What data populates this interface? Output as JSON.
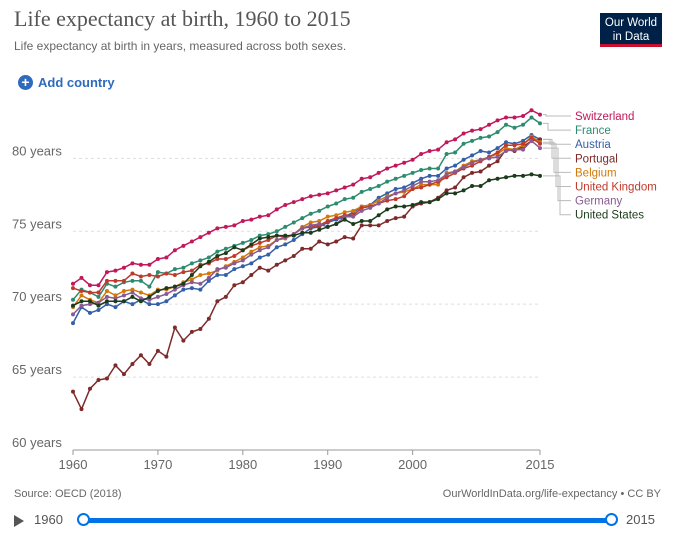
{
  "header": {
    "title": "Life expectancy at birth, 1960 to 2015",
    "subtitle": "Life expectancy at birth in years, measured across both sexes.",
    "logo_line1": "Our World",
    "logo_line2": "in Data"
  },
  "controls": {
    "add_country": "Add country",
    "timeline_start": "1960",
    "timeline_end": "2015",
    "range_start_fraction": 0,
    "range_end_fraction": 1
  },
  "footer": {
    "source": "Source: OECD (2018)",
    "credit": "OurWorldInData.org/life-expectancy • CC BY"
  },
  "chart_data": {
    "type": "line",
    "title": "Life expectancy at birth, 1960 to 2015",
    "xlabel": "",
    "ylabel": "",
    "xlim": [
      1960,
      2015
    ],
    "ylim": [
      60,
      84
    ],
    "x_ticks": [
      "1960",
      "1970",
      "1980",
      "1990",
      "2000",
      "2015"
    ],
    "y_ticks": [
      "60 years",
      "65 years",
      "70 years",
      "75 years",
      "80 years"
    ],
    "grid": "horizontal dashed",
    "legend": "right, line-end labels",
    "x": [
      1960,
      1961,
      1962,
      1963,
      1964,
      1965,
      1966,
      1967,
      1968,
      1969,
      1970,
      1971,
      1972,
      1973,
      1974,
      1975,
      1976,
      1977,
      1978,
      1979,
      1980,
      1981,
      1982,
      1983,
      1984,
      1985,
      1986,
      1987,
      1988,
      1989,
      1990,
      1991,
      1992,
      1993,
      1994,
      1995,
      1996,
      1997,
      1998,
      1999,
      2000,
      2001,
      2002,
      2003,
      2004,
      2005,
      2006,
      2007,
      2008,
      2009,
      2010,
      2011,
      2012,
      2013,
      2014,
      2015
    ],
    "series": [
      {
        "name": "Switzerland",
        "color": "#c2185b",
        "values": [
          71.4,
          71.8,
          71.3,
          71.3,
          72.2,
          72.3,
          72.5,
          72.8,
          72.7,
          72.7,
          73.1,
          73.2,
          73.7,
          74.0,
          74.3,
          74.6,
          74.9,
          75.2,
          75.3,
          75.4,
          75.7,
          75.8,
          76.0,
          76.1,
          76.5,
          76.8,
          77.0,
          77.2,
          77.4,
          77.5,
          77.6,
          77.8,
          78.0,
          78.2,
          78.6,
          78.7,
          79.0,
          79.3,
          79.5,
          79.7,
          79.9,
          80.3,
          80.5,
          80.6,
          81.1,
          81.3,
          81.7,
          81.9,
          82.0,
          82.3,
          82.6,
          82.8,
          82.8,
          82.9,
          83.3,
          83.0
        ]
      },
      {
        "name": "France",
        "color": "#2e8b6f",
        "values": [
          70.3,
          71.0,
          70.8,
          70.5,
          71.4,
          71.2,
          71.5,
          71.6,
          71.6,
          71.2,
          72.2,
          72.1,
          72.4,
          72.5,
          72.8,
          73.0,
          73.2,
          73.6,
          73.8,
          74.0,
          74.2,
          74.4,
          74.7,
          74.8,
          75.0,
          75.3,
          75.6,
          75.9,
          76.2,
          76.4,
          76.7,
          76.9,
          77.2,
          77.3,
          77.7,
          77.9,
          78.1,
          78.4,
          78.6,
          78.8,
          79.0,
          79.2,
          79.3,
          79.3,
          80.3,
          80.4,
          81.0,
          81.2,
          81.4,
          81.5,
          81.8,
          82.3,
          82.1,
          82.3,
          82.8,
          82.4
        ]
      },
      {
        "name": "Austria",
        "color": "#3360a9",
        "values": [
          68.7,
          69.8,
          69.4,
          69.6,
          70.0,
          69.8,
          70.2,
          70.0,
          70.3,
          70.0,
          70.0,
          70.2,
          70.6,
          71.0,
          71.1,
          71.0,
          71.6,
          72.0,
          72.0,
          72.4,
          72.6,
          72.8,
          73.2,
          73.4,
          73.9,
          74.1,
          74.4,
          74.8,
          75.2,
          75.3,
          75.6,
          75.8,
          76.0,
          76.3,
          76.7,
          76.8,
          77.3,
          77.6,
          77.9,
          78.0,
          78.3,
          78.6,
          78.8,
          78.8,
          79.3,
          79.5,
          79.9,
          80.2,
          80.5,
          80.4,
          80.7,
          81.1,
          81.0,
          81.2,
          81.6,
          81.3
        ]
      },
      {
        "name": "Portugal",
        "color": "#7d2a2a",
        "values": [
          64.0,
          62.8,
          64.2,
          64.8,
          64.9,
          65.8,
          65.2,
          65.9,
          66.5,
          65.9,
          66.8,
          66.4,
          68.4,
          67.5,
          68.1,
          68.3,
          69.0,
          70.2,
          70.5,
          71.3,
          71.5,
          72.0,
          72.5,
          72.3,
          72.7,
          73.0,
          73.3,
          73.8,
          73.8,
          74.3,
          74.1,
          74.3,
          74.6,
          74.5,
          75.4,
          75.4,
          75.4,
          75.7,
          75.9,
          76.0,
          76.7,
          76.9,
          77.0,
          77.3,
          77.8,
          78.0,
          78.7,
          79.0,
          79.1,
          79.5,
          79.8,
          80.6,
          80.5,
          80.8,
          81.2,
          81.3
        ]
      },
      {
        "name": "Belgium",
        "color": "#d17a0a",
        "values": [
          69.8,
          70.6,
          70.3,
          70.1,
          70.9,
          70.6,
          70.9,
          71.0,
          70.8,
          70.6,
          71.0,
          71.0,
          71.2,
          71.5,
          71.7,
          72.0,
          72.1,
          72.3,
          72.6,
          72.9,
          73.2,
          73.6,
          73.9,
          74.0,
          74.4,
          74.5,
          74.8,
          75.3,
          75.6,
          75.7,
          76.0,
          76.1,
          76.3,
          76.4,
          76.7,
          76.8,
          77.1,
          77.4,
          77.6,
          77.7,
          77.9,
          78.2,
          78.2,
          78.2,
          79.0,
          79.1,
          79.5,
          79.8,
          79.9,
          80.1,
          80.3,
          80.7,
          80.6,
          80.9,
          81.5,
          81.1
        ]
      },
      {
        "name": "United Kingdom",
        "color": "#c0392b",
        "values": [
          71.1,
          70.9,
          70.8,
          70.8,
          71.6,
          71.6,
          71.6,
          72.1,
          71.9,
          72.0,
          71.9,
          72.1,
          72.0,
          72.2,
          72.3,
          72.7,
          72.8,
          73.1,
          73.1,
          73.3,
          73.7,
          74.0,
          74.2,
          74.4,
          74.7,
          74.6,
          74.8,
          75.2,
          75.3,
          75.4,
          75.7,
          75.9,
          76.1,
          76.1,
          76.6,
          76.7,
          76.9,
          77.1,
          77.2,
          77.4,
          77.9,
          78.0,
          78.2,
          78.4,
          78.7,
          79.0,
          79.3,
          79.5,
          79.8,
          80.1,
          80.4,
          80.9,
          80.9,
          81.0,
          81.4,
          81.0
        ]
      },
      {
        "name": "Germany",
        "color": "#8a5a92",
        "values": [
          69.3,
          69.9,
          70.0,
          70.1,
          70.5,
          70.4,
          70.6,
          70.8,
          70.4,
          70.3,
          70.5,
          70.7,
          71.0,
          71.3,
          71.5,
          71.4,
          71.8,
          72.4,
          72.5,
          72.8,
          73.0,
          73.4,
          73.7,
          73.9,
          74.4,
          74.6,
          74.8,
          75.2,
          75.4,
          75.5,
          75.3,
          75.5,
          76.0,
          76.0,
          76.4,
          76.6,
          76.9,
          77.3,
          77.6,
          77.8,
          78.1,
          78.4,
          78.4,
          78.5,
          78.9,
          79.1,
          79.4,
          79.7,
          79.9,
          80.0,
          80.1,
          80.5,
          80.6,
          80.6,
          81.2,
          80.7
        ]
      },
      {
        "name": "United States",
        "color": "#1b3b1b",
        "values": [
          69.9,
          70.2,
          70.2,
          69.9,
          70.2,
          70.2,
          70.2,
          70.5,
          70.2,
          70.5,
          70.9,
          71.1,
          71.2,
          71.4,
          72.0,
          72.6,
          72.9,
          73.3,
          73.5,
          73.9,
          73.7,
          74.1,
          74.5,
          74.6,
          74.7,
          74.7,
          74.7,
          74.9,
          74.9,
          75.1,
          75.3,
          75.5,
          75.8,
          75.5,
          75.7,
          75.7,
          76.1,
          76.5,
          76.7,
          76.7,
          76.8,
          77.0,
          77.0,
          77.2,
          77.6,
          77.6,
          77.8,
          78.1,
          78.1,
          78.5,
          78.6,
          78.7,
          78.8,
          78.8,
          78.9,
          78.8
        ]
      }
    ]
  }
}
